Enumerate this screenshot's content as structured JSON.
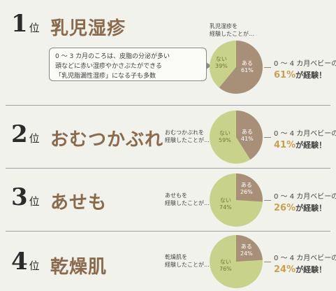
{
  "rankings": [
    {
      "rank": "1",
      "pos_label": "位",
      "title": "乳児湿疹",
      "chart_label_lines": [
        "乳児湿疹を",
        "経験したことが…"
      ],
      "yes_label": "ある",
      "yes_pct": "61%",
      "no_label": "ない",
      "no_pct": "39%",
      "yes_value": 61,
      "stat_prefix": "0 ～ 4 カ月ベビーの",
      "stat_pct": "61%",
      "stat_suffix": "が経験！",
      "bubble_lines": [
        "0 ～ 3 カ月のころは、皮脂の分泌が多い",
        "頭などに赤い湿疹やかさぶたができる",
        "「乳児脂漏性湿疹」になる子も多数"
      ]
    },
    {
      "rank": "2",
      "pos_label": "位",
      "title": "おむつかぶれ",
      "chart_label_lines": [
        "おむつかぶれを",
        "経験したことが…"
      ],
      "yes_label": "ある",
      "yes_pct": "41%",
      "no_label": "ない",
      "no_pct": "59%",
      "yes_value": 41,
      "stat_prefix": "0 ～ 4 カ月ベビーの",
      "stat_pct": "41%",
      "stat_suffix": "が経験！"
    },
    {
      "rank": "3",
      "pos_label": "位",
      "title": "あせも",
      "chart_label_lines": [
        "あせもを",
        "経験したことが…"
      ],
      "yes_label": "ある",
      "yes_pct": "26%",
      "no_label": "ない",
      "no_pct": "74%",
      "yes_value": 26,
      "stat_prefix": "0 ～ 4 カ月ベビーの",
      "stat_pct": "26%",
      "stat_suffix": "が経験！"
    },
    {
      "rank": "4",
      "pos_label": "位",
      "title": "乾燥肌",
      "chart_label_lines": [
        "乾燥肌を",
        "経験したことが…"
      ],
      "yes_label": "ある",
      "yes_pct": "24%",
      "no_label": "ない",
      "no_pct": "76%",
      "yes_value": 24,
      "stat_prefix": "0 ～ 4 カ月ベビーの",
      "stat_pct": "24%",
      "stat_suffix": "が経験！"
    }
  ],
  "colors": {
    "yes_slice": "#a89078",
    "no_slice": "#c8d28a",
    "accent_pct": "#c9a050",
    "title": "#8a6a4a"
  }
}
